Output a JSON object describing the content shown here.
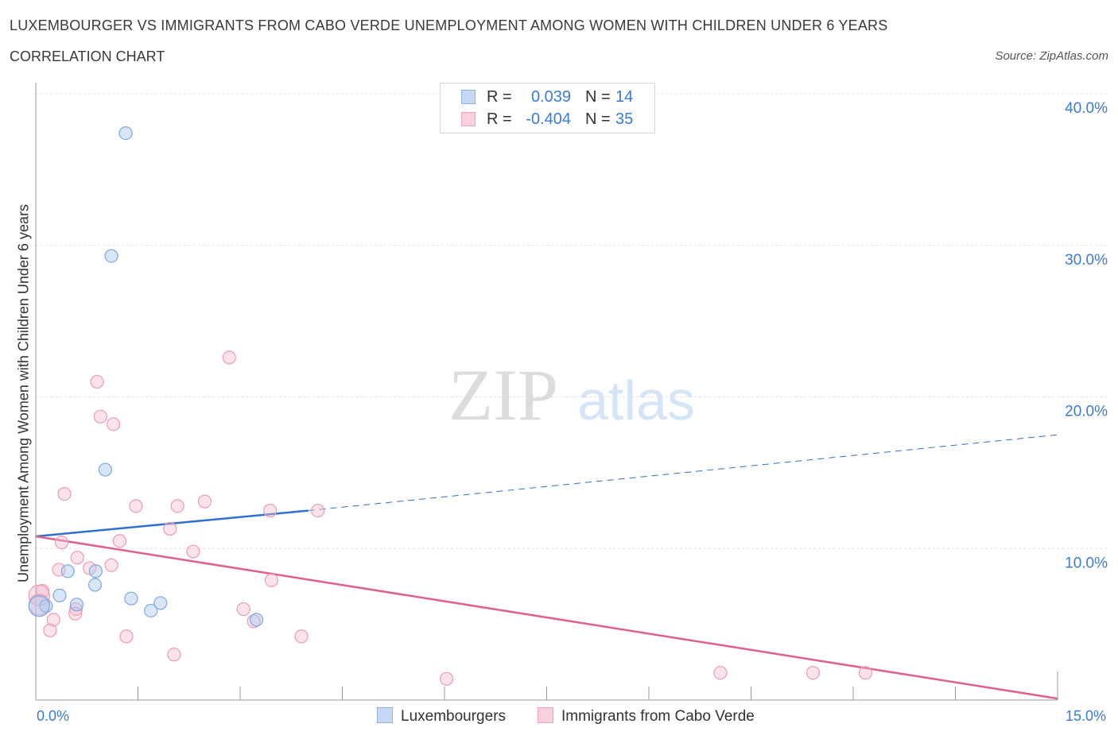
{
  "title": "LUXEMBOURGER VS IMMIGRANTS FROM CABO VERDE UNEMPLOYMENT AMONG WOMEN WITH CHILDREN UNDER 6 YEARS",
  "subtitle": "CORRELATION CHART",
  "source": "Source: ZipAtlas.com",
  "watermark": {
    "zip": "ZIP",
    "atlas": "atlas"
  },
  "legend": {
    "r_label": "R =",
    "n_label": "N =",
    "rows": [
      {
        "r": "0.039",
        "n": "14"
      },
      {
        "r": "-0.404",
        "n": "35"
      }
    ]
  },
  "bottom_legend": [
    "Luxembourgers",
    "Immigrants from Cabo Verde"
  ],
  "x_tick_labels": [
    "0.0%",
    "15.0%"
  ],
  "y_axis_label": "Unemployment Among Women with Children Under 6 years",
  "chart_data": {
    "type": "scatter",
    "xlabel": "",
    "ylabel": "Unemployment Among Women with Children Under 6 years",
    "xlim": [
      0,
      15
    ],
    "ylim": [
      0,
      40
    ],
    "y_ticks": [
      10,
      20,
      30,
      40
    ],
    "y_tick_labels": [
      "10.0%",
      "20.0%",
      "30.0%",
      "40.0%"
    ],
    "grid": true,
    "legend_position": "top-center",
    "colors": {
      "luxembourgers": "#a9c8f0",
      "luxembourgers_line": "#2f6fcf",
      "cabo_verde": "#f5b8cb",
      "cabo_verde_line": "#e0608c",
      "tick_label": "#3a7bd5"
    },
    "series": [
      {
        "name": "Luxembourgers",
        "points": [
          [
            1.32,
            37.4
          ],
          [
            1.11,
            29.3
          ],
          [
            1.02,
            15.2
          ],
          [
            0.47,
            8.5
          ],
          [
            0.88,
            8.5
          ],
          [
            0.87,
            7.6
          ],
          [
            0.35,
            6.9
          ],
          [
            1.4,
            6.7
          ],
          [
            1.83,
            6.4
          ],
          [
            0.6,
            6.3
          ],
          [
            0.15,
            6.2
          ],
          [
            1.69,
            5.9
          ],
          [
            3.24,
            5.3
          ],
          [
            0.05,
            6.2
          ]
        ],
        "trend": {
          "x0": 0,
          "y0": 10.8,
          "x1": 4.0,
          "y1": 12.5,
          "dashed_to_x": 15,
          "dashed_to_y": 17.5
        }
      },
      {
        "name": "Immigrants from Cabo Verde",
        "points": [
          [
            2.84,
            22.6
          ],
          [
            0.9,
            21.0
          ],
          [
            0.95,
            18.7
          ],
          [
            1.14,
            18.2
          ],
          [
            0.42,
            13.6
          ],
          [
            2.48,
            13.1
          ],
          [
            1.47,
            12.8
          ],
          [
            2.08,
            12.8
          ],
          [
            3.44,
            12.5
          ],
          [
            4.14,
            12.5
          ],
          [
            1.97,
            11.3
          ],
          [
            1.23,
            10.5
          ],
          [
            0.38,
            10.4
          ],
          [
            2.31,
            9.8
          ],
          [
            0.61,
            9.4
          ],
          [
            1.11,
            8.9
          ],
          [
            0.79,
            8.7
          ],
          [
            0.34,
            8.6
          ],
          [
            3.46,
            7.9
          ],
          [
            0.1,
            7.2
          ],
          [
            0.05,
            6.9
          ],
          [
            0.05,
            6.3
          ],
          [
            3.05,
            6.0
          ],
          [
            0.59,
            6.0
          ],
          [
            0.58,
            5.7
          ],
          [
            0.26,
            5.3
          ],
          [
            3.2,
            5.2
          ],
          [
            0.21,
            4.6
          ],
          [
            1.33,
            4.2
          ],
          [
            3.9,
            4.2
          ],
          [
            2.03,
            3.0
          ],
          [
            6.03,
            1.4
          ],
          [
            10.05,
            1.8
          ],
          [
            11.41,
            1.8
          ],
          [
            12.18,
            1.8
          ]
        ],
        "trend": {
          "x0": 0,
          "y0": 10.8,
          "x1": 15,
          "y1": 0.1
        }
      }
    ]
  }
}
